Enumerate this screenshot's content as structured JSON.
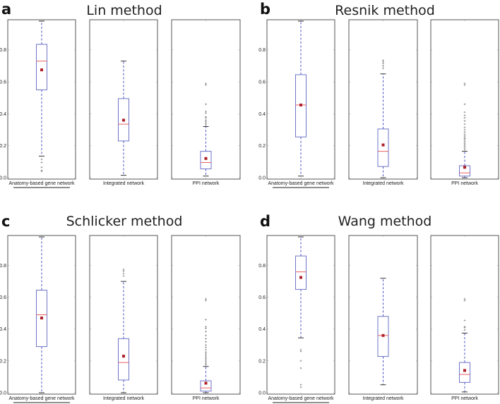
{
  "chart_data": [
    {
      "type": "box",
      "panel": "a",
      "title": "Lin method",
      "ylim": [
        0.0,
        0.98
      ],
      "yticks": [
        "0.0",
        "0.2",
        "0.4",
        "0.6",
        "0.8"
      ],
      "categories": [
        "Anatomy-based gene network",
        "Integrated network",
        "PPI network"
      ],
      "highlighted_category": "Anatomy-based gene network",
      "boxes": [
        {
          "whisker_low": 0.135,
          "q1": 0.55,
          "median": 0.73,
          "q3": 0.835,
          "whisker_high": 0.98,
          "mean": 0.675,
          "outliers": [
            0.115,
            0.095,
            0.065,
            0.045,
            0.04
          ]
        },
        {
          "whisker_low": 0.015,
          "q1": 0.23,
          "median": 0.335,
          "q3": 0.495,
          "whisker_high": 0.73,
          "mean": 0.36,
          "outliers": []
        },
        {
          "whisker_low": 0.01,
          "q1": 0.055,
          "median": 0.095,
          "q3": 0.165,
          "whisker_high": 0.32,
          "mean": 0.12,
          "outliers": [
            0.33,
            0.34,
            0.35,
            0.36,
            0.375,
            0.38,
            0.405,
            0.415,
            0.46,
            0.58,
            0.59
          ]
        }
      ]
    },
    {
      "type": "box",
      "panel": "b",
      "title": "Resnik method",
      "ylim": [
        0.0,
        0.98
      ],
      "yticks": [
        "0.0",
        "0.2",
        "0.4",
        "0.6",
        "0.8"
      ],
      "categories": [
        "Anatomy-based gene network",
        "Integrated network",
        "PPI network"
      ],
      "highlighted_category": "Anatomy-based gene network",
      "boxes": [
        {
          "whisker_low": 0.01,
          "q1": 0.255,
          "median": 0.455,
          "q3": 0.645,
          "whisker_high": 0.98,
          "mean": 0.455,
          "outliers": []
        },
        {
          "whisker_low": 0.0,
          "q1": 0.07,
          "median": 0.165,
          "q3": 0.305,
          "whisker_high": 0.65,
          "mean": 0.205,
          "outliers": [
            0.685,
            0.7,
            0.715,
            0.725,
            0.735
          ]
        },
        {
          "whisker_low": 0.0,
          "q1": 0.01,
          "median": 0.03,
          "q3": 0.075,
          "whisker_high": 0.165,
          "mean": 0.065,
          "outliers": [
            0.175,
            0.185,
            0.195,
            0.205,
            0.215,
            0.225,
            0.235,
            0.245,
            0.25,
            0.26,
            0.27,
            0.285,
            0.3,
            0.315,
            0.335,
            0.355,
            0.375,
            0.39,
            0.41,
            0.46,
            0.58,
            0.59
          ]
        }
      ]
    },
    {
      "type": "box",
      "panel": "c",
      "title": "Schlicker method",
      "ylim": [
        0.0,
        0.98
      ],
      "yticks": [
        "0.0",
        "0.2",
        "0.4",
        "0.6",
        "0.8"
      ],
      "categories": [
        "Anatomy-based gene network",
        "Integrated network",
        "PPI network"
      ],
      "highlighted_category": "Anatomy-based gene network",
      "boxes": [
        {
          "whisker_low": 0.0,
          "q1": 0.29,
          "median": 0.49,
          "q3": 0.645,
          "whisker_high": 0.98,
          "mean": 0.47,
          "outliers": []
        },
        {
          "whisker_low": 0.0,
          "q1": 0.08,
          "median": 0.19,
          "q3": 0.34,
          "whisker_high": 0.7,
          "mean": 0.23,
          "outliers": [
            0.735,
            0.75,
            0.765,
            0.775
          ]
        },
        {
          "whisker_low": 0.0,
          "q1": 0.01,
          "median": 0.03,
          "q3": 0.075,
          "whisker_high": 0.165,
          "mean": 0.06,
          "outliers": [
            0.175,
            0.185,
            0.195,
            0.205,
            0.215,
            0.225,
            0.235,
            0.245,
            0.255,
            0.27,
            0.285,
            0.3,
            0.32,
            0.34,
            0.36,
            0.385,
            0.405,
            0.415,
            0.46,
            0.58,
            0.59
          ]
        }
      ]
    },
    {
      "type": "box",
      "panel": "d",
      "title": "Wang method",
      "ylim": [
        0.0,
        0.98
      ],
      "yticks": [
        "0.0",
        "0.2",
        "0.4",
        "0.6",
        "0.8"
      ],
      "categories": [
        "Anatomy-based gene network",
        "Integrated network",
        "PPI network"
      ],
      "highlighted_category": "Anatomy-based gene network",
      "boxes": [
        {
          "whisker_low": 0.345,
          "q1": 0.65,
          "median": 0.76,
          "q3": 0.86,
          "whisker_high": 0.98,
          "mean": 0.725,
          "outliers": [
            0.27,
            0.26,
            0.2,
            0.155,
            0.05,
            0.035
          ]
        },
        {
          "whisker_low": 0.05,
          "q1": 0.228,
          "median": 0.36,
          "q3": 0.48,
          "whisker_high": 0.72,
          "mean": 0.36,
          "outliers": []
        },
        {
          "whisker_low": 0.005,
          "q1": 0.065,
          "median": 0.115,
          "q3": 0.19,
          "whisker_high": 0.375,
          "mean": 0.14,
          "outliers": [
            0.395,
            0.41,
            0.415,
            0.455,
            0.58,
            0.59
          ]
        }
      ]
    }
  ],
  "colors": {
    "box": "#6e74c8",
    "whisker": "#4a50c0",
    "median": "#e86060",
    "mean": "#b0202a",
    "outlier": "#888888",
    "frame": "#555555"
  }
}
